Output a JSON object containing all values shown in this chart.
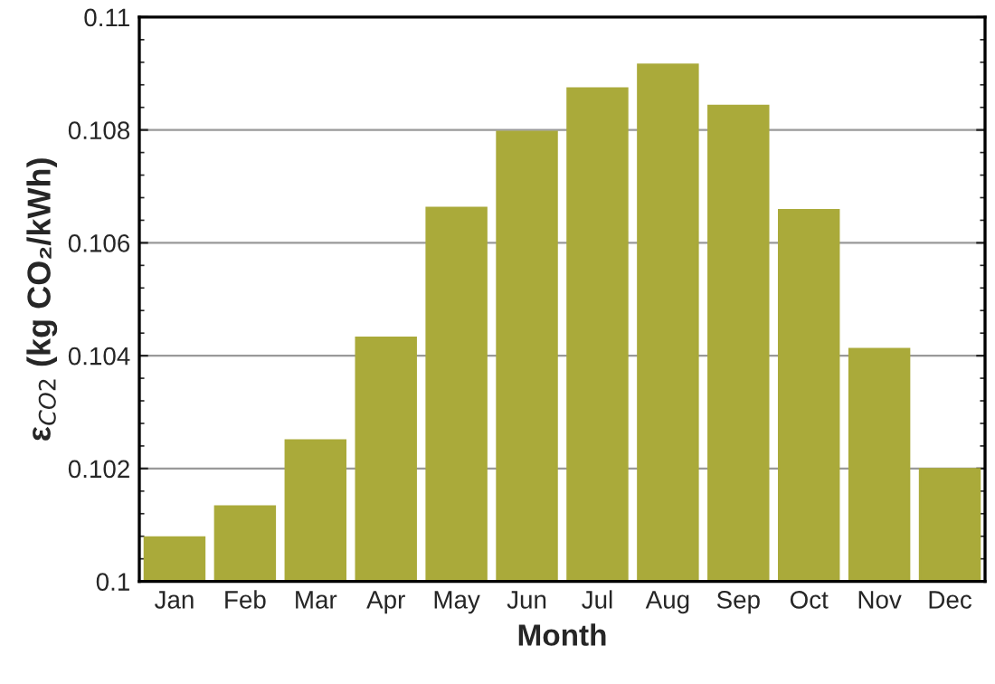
{
  "chart_data": {
    "type": "bar",
    "xlabel": "Month",
    "ylabel": "ε$_{CO2}$ (kg CO₂/kWh)",
    "categories": [
      "Jan",
      "Feb",
      "Mar",
      "Apr",
      "May",
      "Jun",
      "Jul",
      "Aug",
      "Sep",
      "Oct",
      "Nov",
      "Dec"
    ],
    "values": [
      0.10078,
      0.10133,
      0.1025,
      0.10432,
      0.10662,
      0.10797,
      0.10874,
      0.10916,
      0.10843,
      0.10658,
      0.10412,
      0.10199
    ],
    "color": "#aaaa3a",
    "ylim": [
      0.1,
      0.11
    ],
    "yticks": [
      0.1,
      0.102,
      0.104,
      0.106,
      0.108,
      0.11
    ],
    "grid": "y"
  }
}
